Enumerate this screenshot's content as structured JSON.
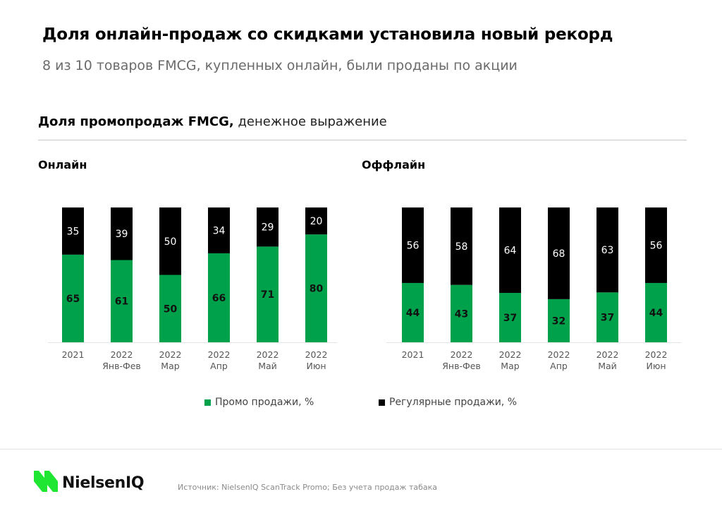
{
  "header": {
    "title": "Доля онлайн-продаж со скидками установила новый рекорд",
    "subtitle": "8 из 10 товаров FMCG, купленных онлайн, были проданы по акции"
  },
  "section": {
    "title_bold": "Доля промопродаж FMCG,",
    "title_rest": " денежное выражение"
  },
  "legend": {
    "promo": "Промо продажи, %",
    "regular": "Регулярные продажи, %"
  },
  "colors": {
    "promo": "#00a14b",
    "regular": "#000000",
    "logo": "#1ee632"
  },
  "footer": {
    "logo_text": "NielsenIQ",
    "source": "Источник: NielsenIQ ScanTrack Promo;  Без учета продаж табака"
  },
  "chart_data": [
    {
      "type": "bar",
      "stacked": true,
      "title": "Онлайн",
      "categories": [
        [
          "2021"
        ],
        [
          "2022",
          "Янв-Фев"
        ],
        [
          "2022",
          "Мар"
        ],
        [
          "2022",
          "Апр"
        ],
        [
          "2022",
          "Май"
        ],
        [
          "2022",
          "Июн"
        ]
      ],
      "series": [
        {
          "name": "Промо продажи, %",
          "values": [
            65,
            61,
            50,
            66,
            71,
            80
          ]
        },
        {
          "name": "Регулярные продажи, %",
          "values": [
            35,
            39,
            50,
            34,
            29,
            20
          ]
        }
      ],
      "xlabel": "",
      "ylabel": "",
      "ylim": [
        0,
        100
      ],
      "grid": false,
      "legend_position": "bottom"
    },
    {
      "type": "bar",
      "stacked": true,
      "title": "Оффлайн",
      "categories": [
        [
          "2021"
        ],
        [
          "2022",
          "Янв-Фев"
        ],
        [
          "2022",
          "Мар"
        ],
        [
          "2022",
          "Апр"
        ],
        [
          "2022",
          "Май"
        ],
        [
          "2022",
          "Июн"
        ]
      ],
      "series": [
        {
          "name": "Промо продажи, %",
          "values": [
            44,
            43,
            37,
            32,
            37,
            44
          ]
        },
        {
          "name": "Регулярные продажи, %",
          "values": [
            56,
            58,
            64,
            68,
            63,
            56
          ]
        }
      ],
      "xlabel": "",
      "ylabel": "",
      "ylim": [
        0,
        100
      ],
      "grid": false,
      "legend_position": "bottom"
    }
  ]
}
